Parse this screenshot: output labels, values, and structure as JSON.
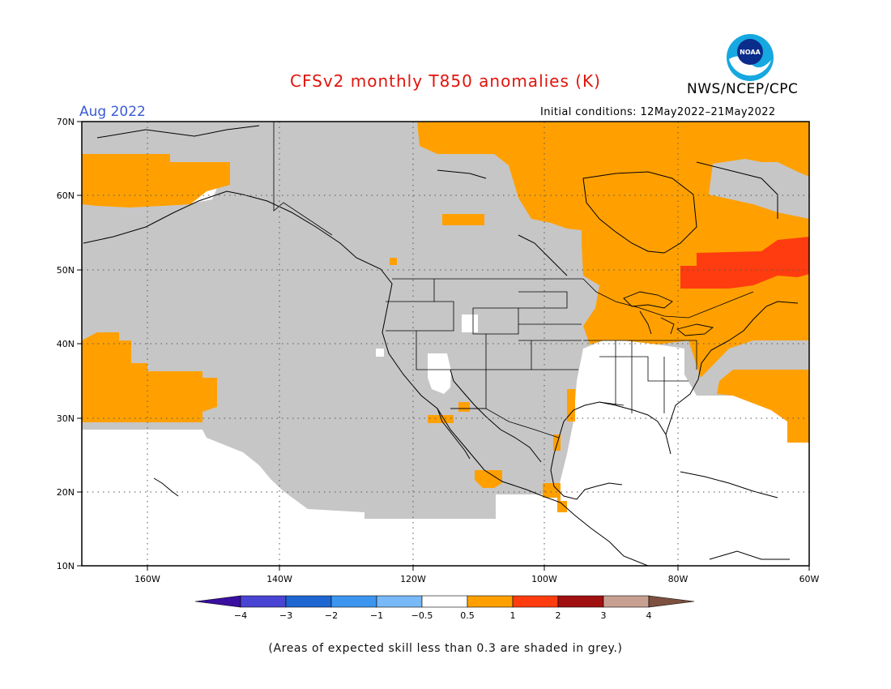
{
  "header": {
    "title": "CFSv2 monthly T850 anomalies (K)",
    "month": "Aug 2022",
    "agency": "NWS/NCEP/CPC",
    "initial_conditions": "Initial conditions: 12May2022–21May2022",
    "logo_text": "NOAA"
  },
  "map": {
    "lon_labels": [
      "160W",
      "140W",
      "120W",
      "100W",
      "80W",
      "60W"
    ],
    "lat_labels": [
      "70N",
      "60N",
      "50N",
      "40N",
      "30N",
      "20N",
      "10N"
    ],
    "colors": {
      "grey_low_skill": "#c6c6c6",
      "anom_0_5_to_1": "#ffa000",
      "anom_1_to_2": "#ff3c0f",
      "land_outline": "#000000"
    }
  },
  "colorbar": {
    "labels": [
      "−4",
      "−3",
      "−2",
      "−1",
      "−0.5",
      "0.5",
      "1",
      "2",
      "3",
      "4"
    ],
    "colors": [
      "#3a0fa0",
      "#4a44d4",
      "#1e66d2",
      "#3c96f0",
      "#78b9f7",
      "#ffffff",
      "#ffa000",
      "#ff3c0f",
      "#a01010",
      "#c8a092",
      "#7d5040"
    ]
  },
  "footnote": "(Areas of expected skill less than 0.3 are shaded in grey.)"
}
